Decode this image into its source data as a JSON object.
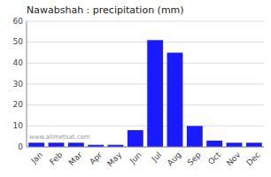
{
  "chart_data": {
    "type": "bar",
    "title": "Nawabshah : precipitation (mm)",
    "categories": [
      "Jan",
      "Feb",
      "Mar",
      "Apr",
      "May",
      "Jun",
      "Jul",
      "Aug",
      "Sep",
      "Oct",
      "Nov",
      "Dec"
    ],
    "values": [
      2,
      2,
      2,
      1,
      1,
      8,
      51,
      45,
      10,
      3,
      2,
      2
    ],
    "color": "#1a1aff",
    "ylim": [
      0,
      60
    ],
    "yticks": [
      0,
      10,
      20,
      30,
      40,
      50,
      60
    ],
    "grid": true,
    "annotations": [
      "www.allmetsat.com"
    ]
  }
}
